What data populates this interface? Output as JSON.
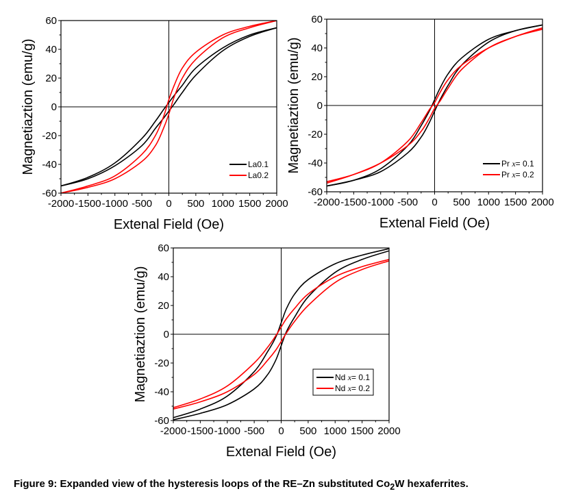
{
  "caption": {
    "prefix": "Figure 9: Expanded view of the hysteresis loops of the RE–Zn substituted Co",
    "sub": "2",
    "suffix": "W hexaferrites."
  },
  "colors": {
    "series1": "#000000",
    "series2": "#ff0000"
  },
  "chart_data": [
    {
      "type": "line",
      "xlabel": "Extenal Field (Oe)",
      "ylabel": "Magnetiaztion (emu/g)",
      "xlim": [
        -2000,
        2000
      ],
      "ylim": [
        -60,
        60
      ],
      "xticks": [
        -2000,
        -1500,
        -1000,
        -500,
        0,
        500,
        1000,
        1500,
        2000
      ],
      "yticks": [
        -60,
        -40,
        -20,
        0,
        20,
        40,
        60
      ],
      "legend_position": "bottom-right",
      "legend_box": false,
      "x": [
        -2000,
        -1500,
        -1000,
        -500,
        -250,
        -100,
        0,
        100,
        250,
        500,
        1000,
        1500,
        2000
      ],
      "series": [
        {
          "name": "La0.1",
          "legend_prefix": "La0.1",
          "legend_italic": "",
          "legend_suffix": "",
          "descending_branch": [
            -55,
            -49,
            -39,
            -22,
            -10,
            -2,
            3,
            8,
            15,
            27,
            41,
            50,
            55
          ]
        },
        {
          "name": "La0.2",
          "legend_prefix": "La0.2",
          "legend_italic": "",
          "legend_suffix": "",
          "descending_branch": [
            -60,
            -55,
            -48,
            -33,
            -20,
            -7,
            5,
            15,
            27,
            38,
            50,
            56,
            60
          ]
        }
      ]
    },
    {
      "type": "line",
      "xlabel": "Extenal Field (Oe)",
      "ylabel": "Magnetiaztion (emu/g)",
      "xlim": [
        -2000,
        2000
      ],
      "ylim": [
        -60,
        60
      ],
      "xticks": [
        -2000,
        -1500,
        -1000,
        -500,
        0,
        500,
        1000,
        1500,
        2000
      ],
      "yticks": [
        -60,
        -40,
        -20,
        0,
        20,
        40,
        60
      ],
      "legend_position": "bottom-right",
      "legend_box": false,
      "x": [
        -2000,
        -1500,
        -1000,
        -500,
        -250,
        -100,
        0,
        100,
        250,
        500,
        1000,
        1500,
        2000
      ],
      "series": [
        {
          "name": "Pr x= 0.1",
          "legend_prefix": "Pr ",
          "legend_italic": "x",
          "legend_suffix": "= 0.1",
          "descending_branch": [
            -56,
            -52,
            -44,
            -28,
            -14,
            -4,
            4,
            12,
            22,
            33,
            46,
            52,
            56
          ]
        },
        {
          "name": "Pr x= 0.2",
          "legend_prefix": "Pr ",
          "legend_italic": "x",
          "legend_suffix": "= 0.2",
          "descending_branch": [
            -53,
            -48,
            -40,
            -25,
            -12,
            -3,
            2,
            9,
            18,
            28,
            40,
            48,
            54
          ]
        }
      ]
    },
    {
      "type": "line",
      "xlabel": "Extenal Field (Oe)",
      "ylabel": "Magnetiaztion (emu/g)",
      "xlim": [
        -2000,
        2000
      ],
      "ylim": [
        -60,
        60
      ],
      "xticks": [
        -2000,
        -1500,
        -1000,
        -500,
        0,
        500,
        1000,
        1500,
        2000
      ],
      "yticks": [
        -60,
        -40,
        -20,
        0,
        20,
        40,
        60
      ],
      "legend_position": "bottom-right",
      "legend_box": true,
      "x": [
        -2000,
        -1500,
        -1000,
        -500,
        -250,
        -100,
        0,
        100,
        250,
        500,
        1000,
        1500,
        2000
      ],
      "series": [
        {
          "name": "Nd x= 0.1",
          "legend_prefix": "Nd ",
          "legend_italic": "x",
          "legend_suffix": "= 0.1",
          "descending_branch": [
            -58,
            -52,
            -43,
            -26,
            -12,
            -2,
            8,
            18,
            28,
            38,
            49,
            55,
            59.5
          ]
        },
        {
          "name": "Nd x= 0.2",
          "legend_prefix": "Nd ",
          "legend_italic": "x",
          "legend_suffix": "= 0.2",
          "descending_branch": [
            -51,
            -45,
            -36,
            -20,
            -9,
            -1,
            5,
            11,
            18,
            28,
            40,
            47,
            52
          ]
        }
      ]
    }
  ]
}
